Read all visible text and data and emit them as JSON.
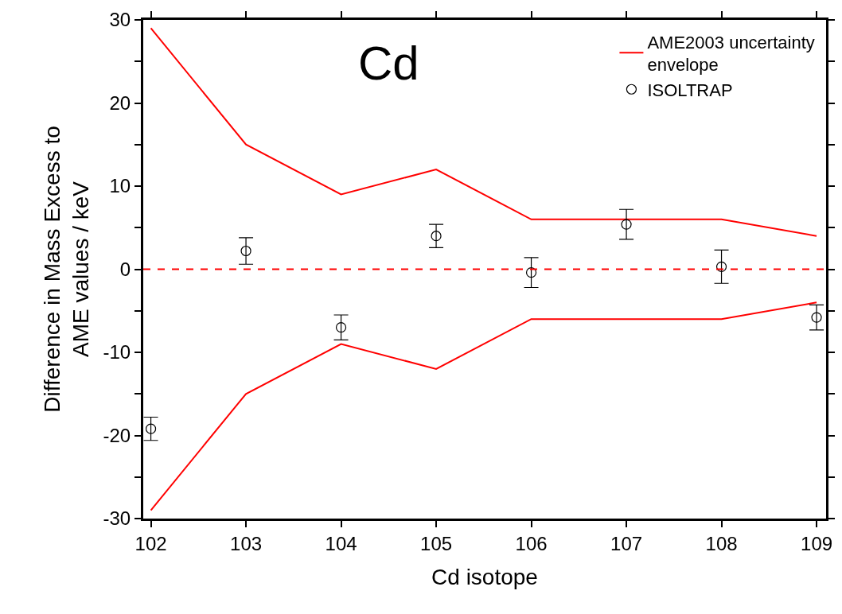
{
  "chart_data": {
    "type": "line",
    "xlabel": "Cd isotope",
    "ylabel": "Difference in Mass Excess to\nAME values / keV",
    "annotations": [
      "Cd"
    ],
    "xlim": [
      101.92,
      109.1
    ],
    "xticks": [
      102,
      103,
      104,
      105,
      106,
      107,
      108,
      109
    ],
    "ylim": [
      -30,
      30
    ],
    "yticks": [
      -30,
      {
        "value": -25,
        "label": null
      },
      -20,
      {
        "value": -15,
        "label": null
      },
      -10,
      {
        "value": -5,
        "label": null
      },
      0,
      {
        "value": 5,
        "label": null
      },
      10,
      {
        "value": 15,
        "label": null
      },
      20,
      {
        "value": 25,
        "label": null
      },
      30
    ],
    "x": [
      102,
      103,
      104,
      105,
      106,
      107,
      108,
      109
    ],
    "series": [
      {
        "name": "AME2003 uncertainty\nenvelope",
        "color": "#ff0000",
        "values": [
          29,
          15,
          9,
          12,
          6,
          6,
          6,
          4
        ]
      },
      {
        "color": "#ff0000",
        "values": [
          -29,
          -15,
          -9,
          -12,
          -6,
          -6,
          -6,
          -4
        ]
      },
      {
        "name": "ISOLTRAP",
        "type": "scatter",
        "color": "#000000",
        "marker": "circle",
        "values": [
          -19.2,
          2.2,
          -7,
          4,
          -0.4,
          5.4,
          0.3,
          -5.8
        ],
        "errors": [
          1.4,
          1.6,
          1.5,
          1.4,
          1.8,
          1.8,
          2,
          1.5
        ]
      }
    ],
    "ref_lines": [
      {
        "axis": "y",
        "value": 0,
        "color": "#ff0000",
        "line_style": "dashed"
      }
    ],
    "grid": false,
    "legend": "top right"
  }
}
